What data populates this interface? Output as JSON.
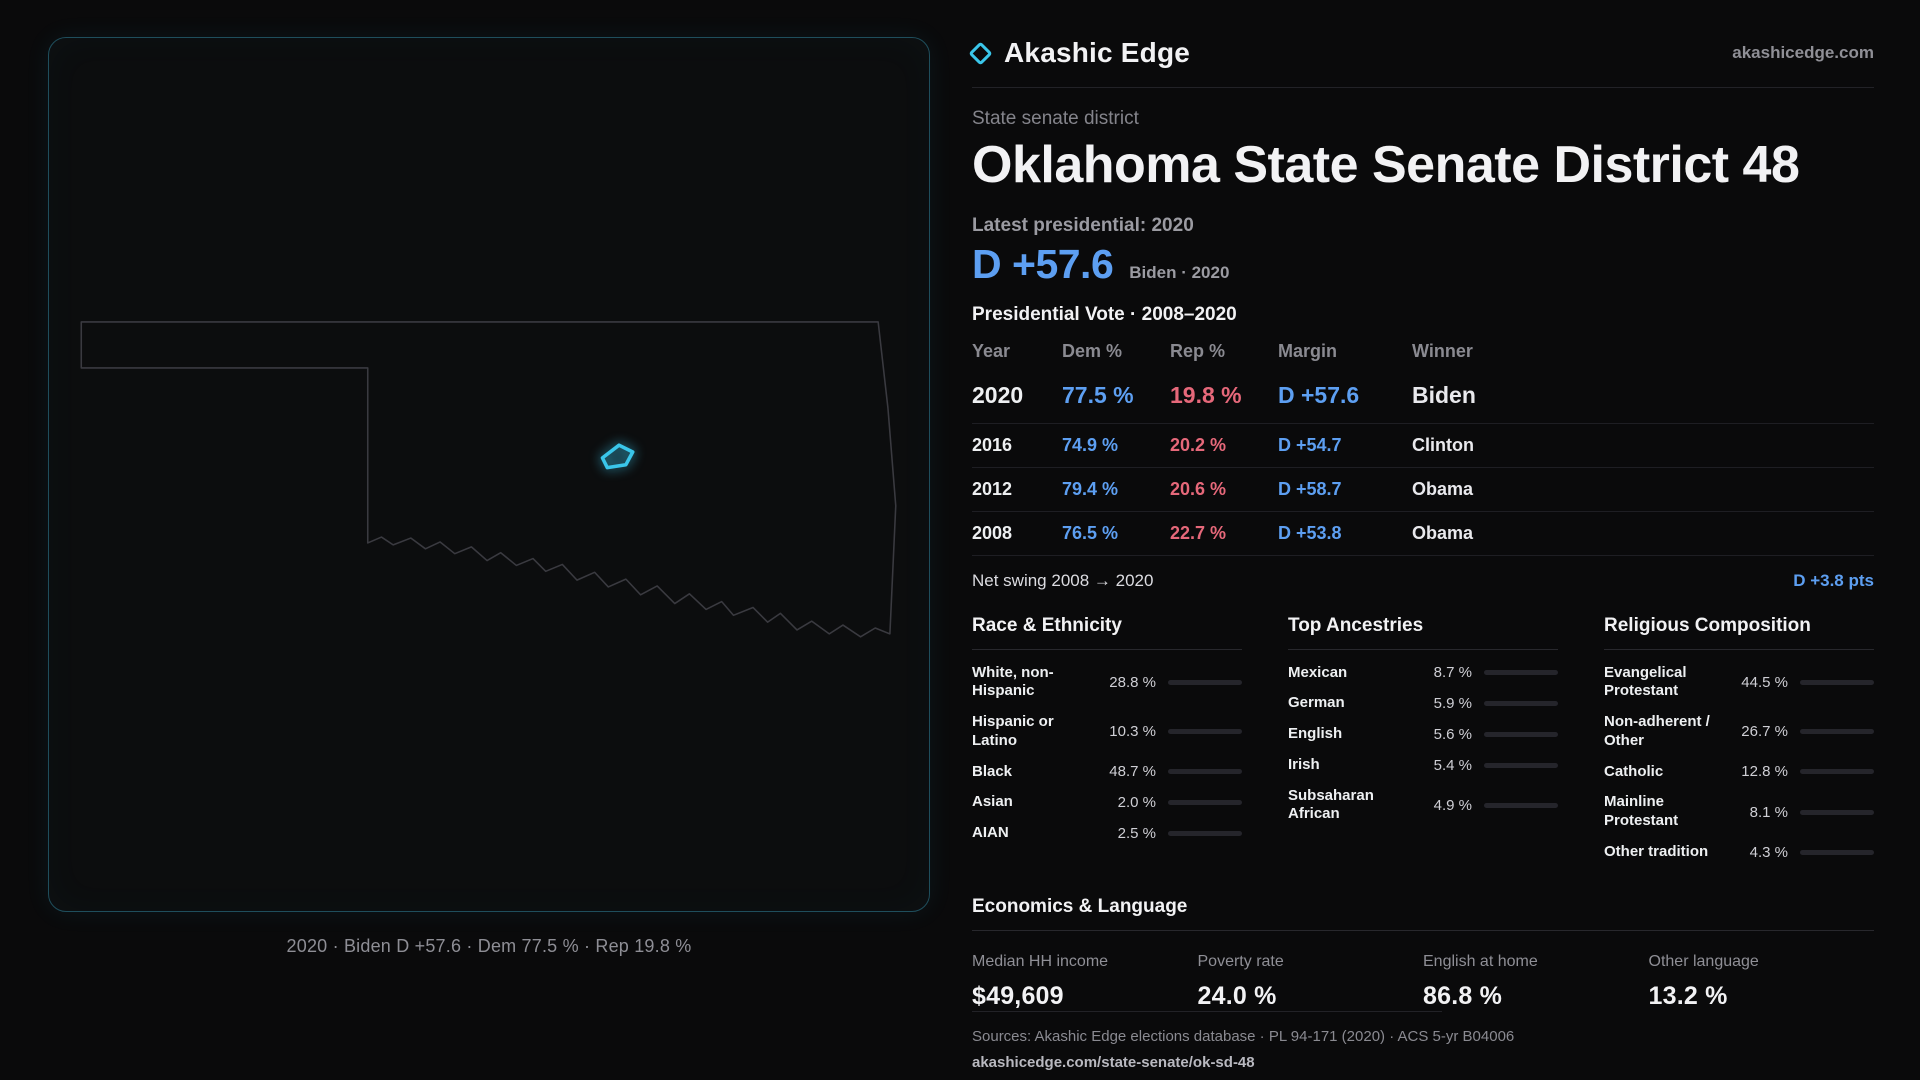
{
  "colors": {
    "accent": "#3ac6ea",
    "dem": "#5d9ff2",
    "rep": "#e6687a",
    "bg": "#0a0a0b"
  },
  "brand": {
    "name": "Akashic Edge",
    "domain": "akashicedge.com",
    "logo_icon": "diamond-icon"
  },
  "map": {
    "caption": "2020 · Biden D +57.6 · Dem 77.5 % · Rep 19.8 %"
  },
  "header": {
    "kicker": "State senate district",
    "title": "Oklahoma State Senate District 48",
    "latest_label": "Latest presidential: 2020",
    "margin_big": "D +57.6",
    "margin_sub": "Biden · 2020"
  },
  "vote_table": {
    "title": "Presidential Vote · 2008–2020",
    "columns": [
      "Year",
      "Dem %",
      "Rep %",
      "Margin",
      "Winner"
    ],
    "rows": [
      {
        "year": "2020",
        "dem": "77.5 %",
        "rep": "19.8 %",
        "margin": "D +57.6",
        "winner": "Biden"
      },
      {
        "year": "2016",
        "dem": "74.9 %",
        "rep": "20.2 %",
        "margin": "D +54.7",
        "winner": "Clinton"
      },
      {
        "year": "2012",
        "dem": "79.4 %",
        "rep": "20.6 %",
        "margin": "D +58.7",
        "winner": "Obama"
      },
      {
        "year": "2008",
        "dem": "76.5 %",
        "rep": "22.7 %",
        "margin": "D +53.8",
        "winner": "Obama"
      }
    ],
    "net_swing_label": "Net swing 2008 → 2020",
    "net_swing_value": "D +3.8 pts"
  },
  "race": {
    "title": "Race & Ethnicity",
    "rows": [
      {
        "label": "White, non-Hispanic",
        "value": "28.8 %",
        "pct": 28.8,
        "color": "#aeb6c4"
      },
      {
        "label": "Hispanic or Latino",
        "value": "10.3 %",
        "pct": 10.3,
        "color": "#e5b54a"
      },
      {
        "label": "Black",
        "value": "48.7 %",
        "pct": 48.7,
        "color": "#9b8cf2"
      },
      {
        "label": "Asian",
        "value": "2.0 %",
        "pct": 2.0,
        "color": "#53b77e"
      },
      {
        "label": "AIAN",
        "value": "2.5 %",
        "pct": 2.5,
        "color": "#d8c94f"
      }
    ]
  },
  "ancestries": {
    "title": "Top Ancestries",
    "rows": [
      {
        "label": "Mexican",
        "value": "8.7 %",
        "pct": 8.7,
        "color": "#e5b54a"
      },
      {
        "label": "German",
        "value": "5.9 %",
        "pct": 5.9,
        "color": "#9aa2b0"
      },
      {
        "label": "English",
        "value": "5.6 %",
        "pct": 5.6,
        "color": "#9aa2b0"
      },
      {
        "label": "Irish",
        "value": "5.4 %",
        "pct": 5.4,
        "color": "#9aa2b0"
      },
      {
        "label": "Subsaharan African",
        "value": "4.9 %",
        "pct": 4.9,
        "color": "#9b8cf2"
      }
    ]
  },
  "religion": {
    "title": "Religious Composition",
    "rows": [
      {
        "label": "Evangelical Protestant",
        "value": "44.5 %",
        "pct": 44.5,
        "color": "#e0606e"
      },
      {
        "label": "Non-adherent / Other",
        "value": "26.7 %",
        "pct": 26.7,
        "color": "#8f98a8"
      },
      {
        "label": "Catholic",
        "value": "12.8 %",
        "pct": 12.8,
        "color": "#e5b54a"
      },
      {
        "label": "Mainline Protestant",
        "value": "8.1 %",
        "pct": 8.1,
        "color": "#5d9ff2"
      },
      {
        "label": "Other tradition",
        "value": "4.3 %",
        "pct": 4.3,
        "color": "#8f98a8"
      }
    ]
  },
  "economics": {
    "title": "Economics & Language",
    "stats": [
      {
        "label": "Median HH income",
        "value": "$49,609"
      },
      {
        "label": "Poverty rate",
        "value": "24.0 %"
      },
      {
        "label": "English at home",
        "value": "86.8 %"
      },
      {
        "label": "Other language",
        "value": "13.2 %"
      }
    ]
  },
  "footer": {
    "sources": "Sources: Akashic Edge elections database · PL 94-171 (2020) · ACS 5-yr B04006",
    "permalink": "akashicedge.com/state-senate/ok-sd-48"
  }
}
